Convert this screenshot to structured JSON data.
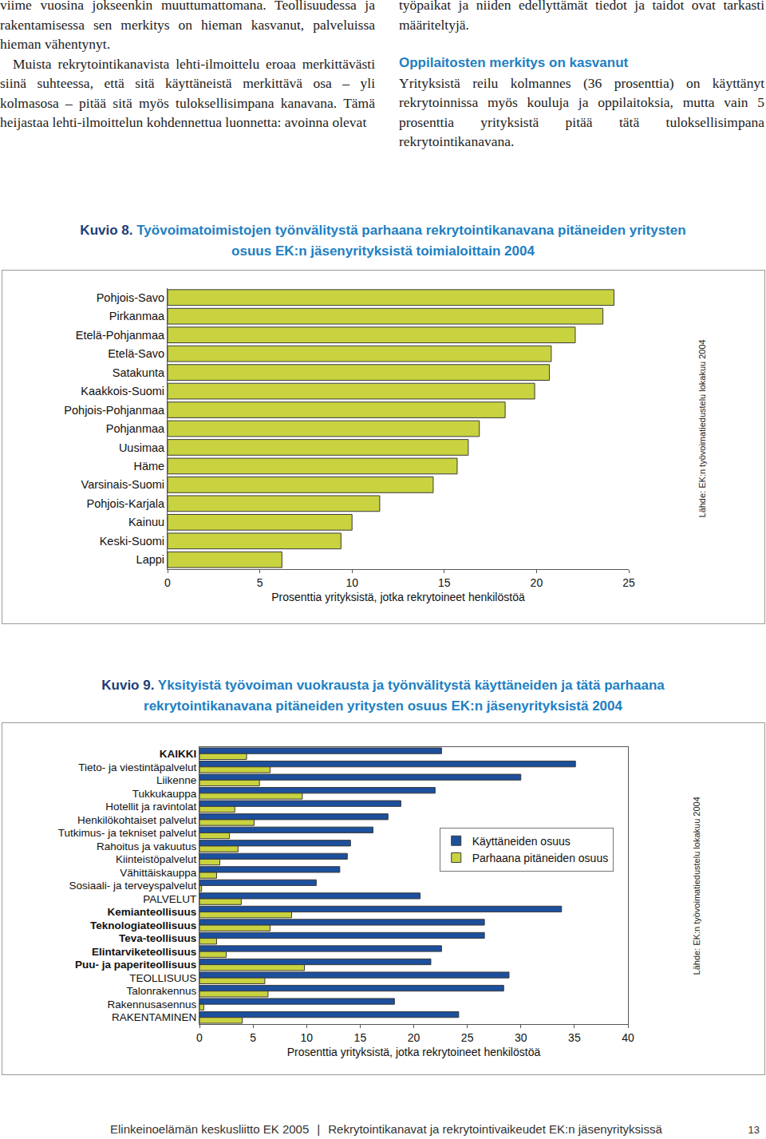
{
  "page": {
    "left_column": [
      "viime vuosina jokseenkin muuttumattomana. Teollisuudessa ja rakentamisessa sen merkitys on hieman kasvanut, palveluissa hieman vähentynyt.",
      "Muista rekrytointikanavista lehti-ilmoittelu eroaa merkittävästi siinä suhteessa, että sitä käyttäneistä merkittävä osa – yli kolmasosa – pitää sitä myös tuloksellisimpana kanavana. Tämä heijastaa lehti-ilmoittelun kohdennettua luonnetta: avoinna olevat"
    ],
    "right_column": {
      "continuation": "työpaikat ja niiden edellyttämät tiedot ja taidot ovat tarkasti määriteltyjä.",
      "heading": "Oppilaitosten merkitys on kasvanut",
      "paragraph": "Yrityksistä reilu kolmannes (36 prosenttia) on käyttänyt rekrytoinnissa myös kouluja ja oppilaitoksia, mutta vain 5 prosenttia yrityksistä pitää tätä tuloksellisimpana rekrytointikanavana."
    },
    "footer": {
      "publisher": "Elinkeinoelämän keskusliitto EK 2005",
      "separator": "|",
      "publication": "Rekrytointikanavat ja rekrytointivaikeudet EK:n jäsenyrityksissä",
      "page_number": "13"
    }
  },
  "chart_data": [
    {
      "label": "Kuvio 8.",
      "title": "Työvoimatoimistojen työnvälitystä parhaana rekrytointikanavana pitäneiden yritysten osuus EK:n jäsenyrityksistä toimialoittain 2004",
      "type": "bar",
      "orientation": "horizontal",
      "categories": [
        "Pohjois-Savo",
        "Pirkanmaa",
        "Etelä-Pohjanmaa",
        "Etelä-Savo",
        "Satakunta",
        "Kaakkois-Suomi",
        "Pohjois-Pohjanmaa",
        "Pohjanmaa",
        "Uusimaa",
        "Häme",
        "Varsinais-Suomi",
        "Pohjois-Karjala",
        "Kainuu",
        "Keski-Suomi",
        "Lappi"
      ],
      "values": [
        24.2,
        23.6,
        22.1,
        20.8,
        20.7,
        19.9,
        18.3,
        16.9,
        16.3,
        15.7,
        14.4,
        11.5,
        10.0,
        9.4,
        6.2
      ],
      "color": "#c9d33f",
      "xlim": [
        0,
        25
      ],
      "xticks": [
        0,
        5,
        10,
        15,
        20,
        25
      ],
      "x_label": "Prosenttia yrityksistä, jotka rekrytoineet henkilöstöä",
      "source": "Lähde: EK:n työvoimatiedustelu lokakuu 2004",
      "grid": false
    },
    {
      "label": "Kuvio 9.",
      "title": "Yksityistä työvoiman vuokrausta ja työnvälitystä käyttäneiden ja tätä parhaana rekrytointikanavana pitäneiden yritysten osuus EK:n jäsenyrityksistä 2004",
      "type": "bar",
      "orientation": "horizontal",
      "categories": [
        "KAIKKI",
        "Tieto- ja viestintäpalvelut",
        "Liikenne",
        "Tukkukauppa",
        "Hotellit ja ravintolat",
        "Henkilökohtaiset palvelut",
        "Tutkimus- ja tekniset palvelut",
        "Rahoitus ja vakuutus",
        "Kiinteistöpalvelut",
        "Vähittäiskauppa",
        "Sosiaali- ja terveyspalvelut",
        "PALVELUT",
        "Kemianteollisuus",
        "Teknologiateollisuus",
        "Teva-teollisuus",
        "Elintarviketeollisuus",
        "Puu- ja paperiteollisuus",
        "TEOLLISUUS",
        "Talonrakennus",
        "Rakennusasennus",
        "RAKENTAMINEN"
      ],
      "series": [
        {
          "name": "Käyttäneiden osuus",
          "color": "#1c4f9c",
          "values": [
            22.6,
            35.1,
            30.0,
            22.0,
            18.8,
            17.6,
            16.2,
            14.1,
            13.8,
            13.1,
            10.9,
            20.6,
            33.8,
            26.6,
            26.6,
            22.6,
            21.6,
            28.9,
            28.4,
            18.2,
            24.2
          ]
        },
        {
          "name": "Parhaana pitäneiden osuus",
          "color": "#c9d33f",
          "values": [
            4.4,
            6.6,
            5.6,
            9.6,
            3.3,
            5.1,
            2.8,
            3.6,
            1.9,
            1.6,
            0.2,
            3.9,
            8.6,
            6.6,
            1.6,
            2.5,
            9.8,
            6.1,
            6.4,
            0.4,
            4.0
          ]
        }
      ],
      "xlim": [
        0,
        40
      ],
      "xticks": [
        0,
        5,
        10,
        15,
        20,
        25,
        30,
        35,
        40
      ],
      "x_label": "Prosenttia yrityksistä, jotka rekrytoineet henkilöstöä",
      "source": "Lähde: EK:n työvoimatiedustelu lokakuu 2004",
      "legend": "center",
      "grid": false
    }
  ]
}
